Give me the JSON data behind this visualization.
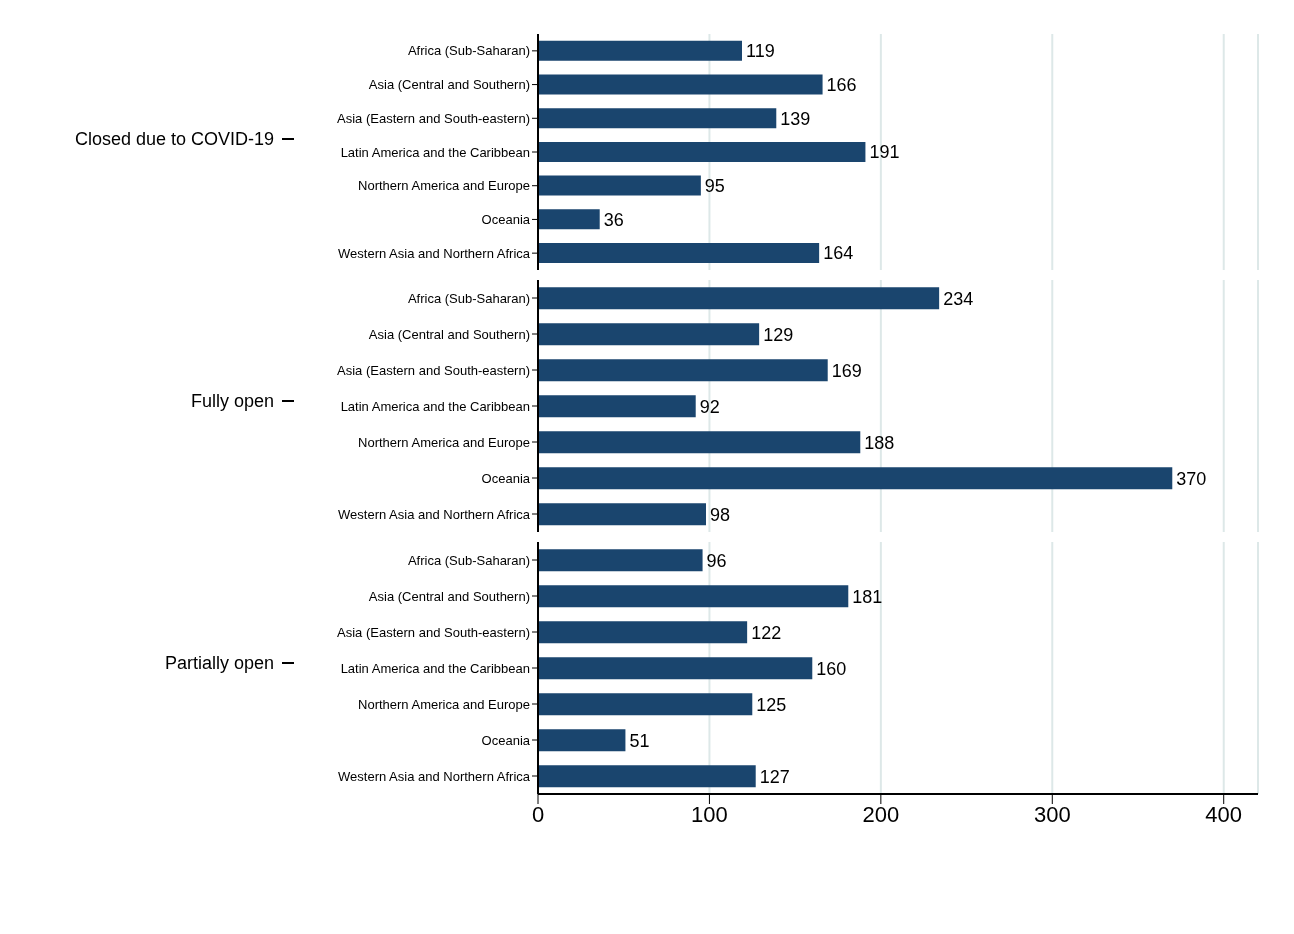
{
  "chart_data": [
    {
      "type": "bar",
      "orientation": "horizontal",
      "ylabel": "Closed due to COVID-19",
      "categories": [
        "Africa (Sub-Saharan)",
        "Asia (Central and Southern)",
        "Asia (Eastern and South-eastern)",
        "Latin America and the Caribbean",
        "Northern America and Europe",
        "Oceania",
        "Western Asia and Northern Africa"
      ],
      "values": [
        119,
        166,
        139,
        191,
        95,
        36,
        164
      ],
      "color": "#1a456e",
      "xlim": [
        0,
        420
      ],
      "xticks": [
        0,
        100,
        200,
        300,
        400
      ],
      "grid": "x",
      "data_labels": true,
      "tick_labels": "y"
    },
    {
      "type": "bar",
      "orientation": "horizontal",
      "ylabel": "Fully open",
      "categories": [
        "Africa (Sub-Saharan)",
        "Asia (Central and Southern)",
        "Asia (Eastern and South-eastern)",
        "Latin America and the Caribbean",
        "Northern America and Europe",
        "Oceania",
        "Western Asia and Northern Africa"
      ],
      "values": [
        234,
        129,
        169,
        92,
        188,
        370,
        98
      ],
      "color": "#1a456e",
      "xlim": [
        0,
        420
      ],
      "xticks": [
        0,
        100,
        200,
        300,
        400
      ],
      "grid": "x",
      "data_labels": true,
      "tick_labels": "y"
    },
    {
      "type": "bar",
      "orientation": "horizontal",
      "ylabel": "Partially open",
      "categories": [
        "Africa (Sub-Saharan)",
        "Asia (Central and Southern)",
        "Asia (Eastern and South-eastern)",
        "Latin America and the Caribbean",
        "Northern America and Europe",
        "Oceania",
        "Western Asia and Northern Africa"
      ],
      "values": [
        96,
        181,
        122,
        160,
        125,
        51,
        127
      ],
      "color": "#1a456e",
      "xlim": [
        0,
        420
      ],
      "xticks": [
        0,
        100,
        200,
        300,
        400
      ],
      "grid": "x",
      "data_labels": true
    }
  ]
}
